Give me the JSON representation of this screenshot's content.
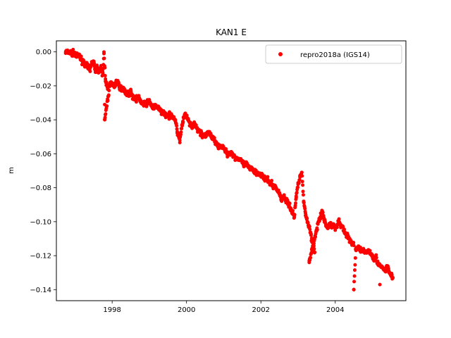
{
  "chart_data": {
    "type": "scatter",
    "title": "KAN1 E",
    "xlabel": "",
    "ylabel": "m",
    "xlim": [
      1996.5,
      2005.9
    ],
    "ylim": [
      -0.1465,
      0.0065
    ],
    "xticks": [
      1998,
      2000,
      2002,
      2004
    ],
    "yticks": [
      0.0,
      -0.02,
      -0.04,
      -0.06,
      -0.08,
      -0.1,
      -0.12,
      -0.14
    ],
    "xtick_labels": [
      "1998",
      "2000",
      "2002",
      "2004"
    ],
    "ytick_labels": [
      "0.00",
      "−0.02",
      "−0.04",
      "−0.06",
      "−0.08",
      "−0.10",
      "−0.12",
      "−0.14"
    ],
    "grid": false,
    "legend": {
      "position": "top-right",
      "entries": [
        "repro2018a (IGS14)"
      ]
    },
    "series": [
      {
        "name": "repro2018a (IGS14)",
        "color": "#ff0000",
        "marker": "circle",
        "trend": {
          "start": [
            1996.75,
            0.0
          ],
          "end": [
            2005.55,
            -0.131
          ],
          "scatter": 0.0035
        },
        "points": [
          [
            1996.75,
            0.0
          ],
          [
            1997.0,
            -0.001
          ],
          [
            1997.05,
            -0.003
          ],
          [
            1997.12,
            -0.002
          ],
          [
            1997.15,
            -0.004
          ],
          [
            1997.3,
            -0.008
          ],
          [
            1997.4,
            -0.01
          ],
          [
            1997.45,
            -0.007
          ],
          [
            1997.5,
            -0.006
          ],
          [
            1997.55,
            -0.011
          ],
          [
            1997.6,
            -0.009
          ],
          [
            1997.65,
            -0.012
          ],
          [
            1997.7,
            -0.01
          ],
          [
            1997.75,
            -0.013
          ],
          [
            1997.78,
            -0.001
          ],
          [
            1997.82,
            -0.016
          ],
          [
            1997.85,
            -0.019
          ],
          [
            1997.88,
            -0.022
          ],
          [
            1997.8,
            -0.031
          ],
          [
            1997.8,
            -0.04
          ],
          [
            1997.95,
            -0.018
          ],
          [
            1998.05,
            -0.02
          ],
          [
            1998.15,
            -0.017
          ],
          [
            1998.2,
            -0.022
          ],
          [
            1998.3,
            -0.021
          ],
          [
            1998.4,
            -0.025
          ],
          [
            1998.5,
            -0.024
          ],
          [
            1998.6,
            -0.028
          ],
          [
            1998.7,
            -0.027
          ],
          [
            1998.8,
            -0.03
          ],
          [
            1998.9,
            -0.031
          ],
          [
            1999.0,
            -0.029
          ],
          [
            1999.1,
            -0.033
          ],
          [
            1999.2,
            -0.032
          ],
          [
            1999.3,
            -0.035
          ],
          [
            1999.4,
            -0.036
          ],
          [
            1999.5,
            -0.038
          ],
          [
            1999.6,
            -0.037
          ],
          [
            1999.7,
            -0.04
          ],
          [
            1999.75,
            -0.047
          ],
          [
            1999.8,
            -0.05
          ],
          [
            1999.82,
            -0.052
          ],
          [
            1999.9,
            -0.041
          ],
          [
            1999.95,
            -0.037
          ],
          [
            2000.0,
            -0.038
          ],
          [
            2000.1,
            -0.043
          ],
          [
            2000.15,
            -0.045
          ],
          [
            2000.2,
            -0.042
          ],
          [
            2000.3,
            -0.046
          ],
          [
            2000.4,
            -0.048
          ],
          [
            2000.5,
            -0.05
          ],
          [
            2000.6,
            -0.047
          ],
          [
            2000.7,
            -0.051
          ],
          [
            2000.8,
            -0.053
          ],
          [
            2000.85,
            -0.056
          ],
          [
            2000.9,
            -0.055
          ],
          [
            2001.0,
            -0.057
          ],
          [
            2001.1,
            -0.06
          ],
          [
            2001.2,
            -0.059
          ],
          [
            2001.3,
            -0.062
          ],
          [
            2001.4,
            -0.063
          ],
          [
            2001.5,
            -0.065
          ],
          [
            2001.55,
            -0.067
          ],
          [
            2001.6,
            -0.066
          ],
          [
            2001.7,
            -0.069
          ],
          [
            2001.75,
            -0.068
          ],
          [
            2001.8,
            -0.07
          ],
          [
            2001.9,
            -0.071
          ],
          [
            2002.0,
            -0.072
          ],
          [
            2002.1,
            -0.075
          ],
          [
            2002.2,
            -0.076
          ],
          [
            2002.3,
            -0.078
          ],
          [
            2002.4,
            -0.08
          ],
          [
            2002.45,
            -0.082
          ],
          [
            2002.5,
            -0.083
          ],
          [
            2002.55,
            -0.087
          ],
          [
            2002.6,
            -0.085
          ],
          [
            2002.7,
            -0.088
          ],
          [
            2002.75,
            -0.09
          ],
          [
            2002.8,
            -0.092
          ],
          [
            2002.85,
            -0.095
          ],
          [
            2002.9,
            -0.097
          ],
          [
            2002.95,
            -0.085
          ],
          [
            2003.0,
            -0.078
          ],
          [
            2003.05,
            -0.073
          ],
          [
            2003.1,
            -0.071
          ],
          [
            2003.15,
            -0.088
          ],
          [
            2003.2,
            -0.095
          ],
          [
            2003.25,
            -0.1
          ],
          [
            2003.3,
            -0.103
          ],
          [
            2003.35,
            -0.108
          ],
          [
            2003.4,
            -0.114
          ],
          [
            2003.45,
            -0.118
          ],
          [
            2003.3,
            -0.124
          ],
          [
            2003.5,
            -0.105
          ],
          [
            2003.55,
            -0.1
          ],
          [
            2003.6,
            -0.097
          ],
          [
            2003.65,
            -0.094
          ],
          [
            2003.7,
            -0.099
          ],
          [
            2003.75,
            -0.102
          ],
          [
            2003.8,
            -0.104
          ],
          [
            2003.85,
            -0.101
          ],
          [
            2003.9,
            -0.103
          ],
          [
            2003.95,
            -0.102
          ],
          [
            2004.0,
            -0.104
          ],
          [
            2004.1,
            -0.1
          ],
          [
            2004.15,
            -0.102
          ],
          [
            2004.2,
            -0.103
          ],
          [
            2004.25,
            -0.106
          ],
          [
            2004.3,
            -0.108
          ],
          [
            2004.35,
            -0.109
          ],
          [
            2004.4,
            -0.111
          ],
          [
            2004.45,
            -0.113
          ],
          [
            2004.5,
            -0.114
          ],
          [
            2004.5,
            -0.14
          ],
          [
            2004.55,
            -0.116
          ],
          [
            2004.6,
            -0.115
          ],
          [
            2004.7,
            -0.117
          ],
          [
            2004.8,
            -0.118
          ],
          [
            2004.9,
            -0.117
          ],
          [
            2005.0,
            -0.12
          ],
          [
            2005.05,
            -0.122
          ],
          [
            2005.1,
            -0.121
          ],
          [
            2005.15,
            -0.125
          ],
          [
            2005.2,
            -0.126
          ],
          [
            2005.25,
            -0.127
          ],
          [
            2005.3,
            -0.128
          ],
          [
            2005.35,
            -0.129
          ],
          [
            2005.4,
            -0.126
          ],
          [
            2005.45,
            -0.13
          ],
          [
            2005.5,
            -0.131
          ],
          [
            2005.55,
            -0.133
          ],
          [
            2005.2,
            -0.137
          ]
        ]
      }
    ]
  }
}
